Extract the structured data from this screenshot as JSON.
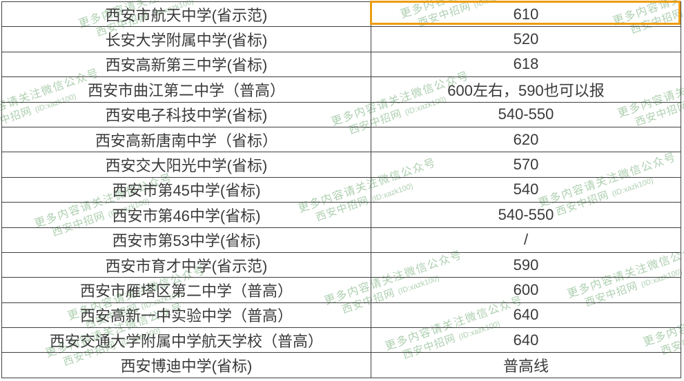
{
  "chart_data": {
    "type": "table",
    "has_header_row": false,
    "rows": [
      {
        "school": "西安市航天中学(省示范)",
        "score": "610"
      },
      {
        "school": "长安大学附属中学(省标)",
        "score": "520"
      },
      {
        "school": "西安高新第三中学(省标)",
        "score": "618"
      },
      {
        "school": "西安市曲江第二中学（普高）",
        "score": "600左右，590也可以报"
      },
      {
        "school": "西安电子科技中学(省标)",
        "score": "540-550"
      },
      {
        "school": "西安高新唐南中学（省标）",
        "score": "620"
      },
      {
        "school": "西安交大阳光中学(省标)",
        "score": "570"
      },
      {
        "school": "西安市第45中学(省标)",
        "score": "540"
      },
      {
        "school": "西安市第46中学(省标)",
        "score": "540-550"
      },
      {
        "school": "西安市第53中学(省标)",
        "score": "/"
      },
      {
        "school": "西安市育才中学(省示范)",
        "score": "590"
      },
      {
        "school": "西安市雁塔区第二中学（普高）",
        "score": "600"
      },
      {
        "school": "西安高新一中实验中学（普高）",
        "score": "640"
      },
      {
        "school": "西安交通大学附属中学航天学校（普高）",
        "score": "640"
      },
      {
        "school": "西安博迪中学(省标)",
        "score": "普高线"
      }
    ],
    "highlighted_cell": {
      "row_index": 0,
      "column": "score",
      "highlight_style": "orange-border-box"
    }
  },
  "watermark": {
    "line1": "更多内容请关注微信公众号",
    "line2_name": "西安中招网",
    "line2_id": "(ID:xazk100)"
  },
  "colors": {
    "highlight_border": "#ED9C10",
    "watermark_text": "#AECFB0",
    "table_text": "#3A3A3A",
    "grid_line": "#3E3E3E",
    "background": "#FFFFFF"
  }
}
